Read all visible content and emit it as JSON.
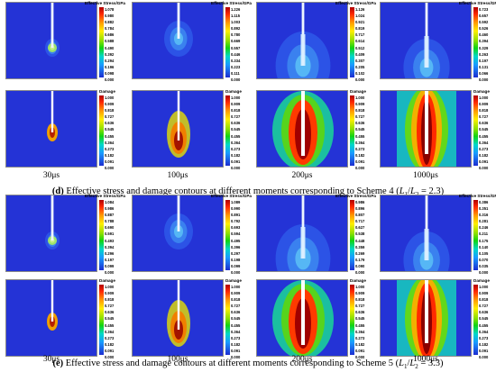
{
  "section_d": {
    "caption_letter": "(d)",
    "caption_text": " Effective stress and damage contours at different moments corresponding to Scheme 4 (",
    "caption_ratio_l1": "L",
    "caption_sub1": "1",
    "caption_slash": "/",
    "caption_ratio_l2": "L",
    "caption_sub2": "2",
    "caption_value": " = 2.3)",
    "times": [
      "30μs",
      "100μs",
      "200μs",
      "1000μs"
    ],
    "stress_panels": [
      {
        "title": "Effective Stress/GPa",
        "ticks": [
          "1.078",
          "0.980",
          "0.882",
          "0.784",
          "0.686",
          "0.588",
          "0.490",
          "0.392",
          "0.294",
          "0.196",
          "0.098",
          "0.000"
        ]
      },
      {
        "title": "Effective Stress/GPa",
        "ticks": [
          "1.226",
          "1.115",
          "1.003",
          "0.892",
          "0.780",
          "0.669",
          "0.557",
          "0.446",
          "0.334",
          "0.223",
          "0.111",
          "0.000"
        ]
      },
      {
        "title": "Effective Stress/GPa",
        "ticks": [
          "1.126",
          "1.024",
          "0.921",
          "0.819",
          "0.717",
          "0.614",
          "0.512",
          "0.409",
          "0.307",
          "0.205",
          "0.102",
          "0.000"
        ]
      },
      {
        "title": "Effective Stress/GPa",
        "ticks": [
          "0.723",
          "0.657",
          "0.592",
          "0.526",
          "0.460",
          "0.394",
          "0.329",
          "0.263",
          "0.197",
          "0.131",
          "0.066",
          "0.000"
        ]
      }
    ],
    "damage_panels": [
      {
        "title": "Damage",
        "ticks": [
          "1.000",
          "0.909",
          "0.818",
          "0.727",
          "0.636",
          "0.545",
          "0.455",
          "0.364",
          "0.273",
          "0.182",
          "0.091",
          "0.000"
        ]
      },
      {
        "title": "Damage",
        "ticks": [
          "1.000",
          "0.909",
          "0.818",
          "0.727",
          "0.636",
          "0.545",
          "0.455",
          "0.364",
          "0.273",
          "0.182",
          "0.091",
          "0.000"
        ]
      },
      {
        "title": "Damage",
        "ticks": [
          "1.000",
          "0.909",
          "0.818",
          "0.727",
          "0.636",
          "0.545",
          "0.455",
          "0.364",
          "0.273",
          "0.182",
          "0.091",
          "0.000"
        ]
      },
      {
        "title": "Damage",
        "ticks": [
          "1.000",
          "0.909",
          "0.818",
          "0.727",
          "0.636",
          "0.545",
          "0.455",
          "0.364",
          "0.273",
          "0.182",
          "0.091",
          "0.000"
        ]
      }
    ]
  },
  "section_e": {
    "caption_letter": "(e)",
    "caption_text": " Effective stress and damage contours at different moments corresponding to Scheme 5 (",
    "caption_ratio_l1": "L",
    "caption_sub1": "1",
    "caption_slash": "/",
    "caption_ratio_l2": "L",
    "caption_sub2": "2",
    "caption_value": " = 3.3)",
    "times": [
      "30μs",
      "100μs",
      "200μs",
      "1000μs"
    ],
    "stress_panels": [
      {
        "title": "Effective Stress/GPa",
        "ticks": [
          "1.084",
          "0.986",
          "0.887",
          "0.788",
          "0.690",
          "0.591",
          "0.493",
          "0.394",
          "0.296",
          "0.197",
          "0.099",
          "0.000"
        ]
      },
      {
        "title": "Effective Stress/GPa",
        "ticks": [
          "1.089",
          "0.990",
          "0.891",
          "0.792",
          "0.693",
          "0.594",
          "0.495",
          "0.396",
          "0.297",
          "0.198",
          "0.099",
          "0.000"
        ]
      },
      {
        "title": "Effective Stress/GPa",
        "ticks": [
          "0.986",
          "0.896",
          "0.807",
          "0.717",
          "0.627",
          "0.538",
          "0.448",
          "0.359",
          "0.269",
          "0.179",
          "0.090",
          "0.000"
        ]
      },
      {
        "title": "Effective Stress/GPa",
        "ticks": [
          "0.386",
          "0.351",
          "0.316",
          "0.281",
          "0.246",
          "0.211",
          "0.175",
          "0.140",
          "0.105",
          "0.070",
          "0.035",
          "0.000"
        ]
      }
    ],
    "damage_panels": [
      {
        "title": "Damage",
        "ticks": [
          "1.000",
          "0.909",
          "0.818",
          "0.727",
          "0.636",
          "0.545",
          "0.455",
          "0.364",
          "0.273",
          "0.182",
          "0.091",
          "0.000"
        ]
      },
      {
        "title": "Damage",
        "ticks": [
          "1.000",
          "0.909",
          "0.818",
          "0.727",
          "0.636",
          "0.545",
          "0.455",
          "0.364",
          "0.273",
          "0.182",
          "0.091",
          "0.000"
        ]
      },
      {
        "title": "Damage",
        "ticks": [
          "1.000",
          "0.909",
          "0.818",
          "0.727",
          "0.636",
          "0.545",
          "0.455",
          "0.364",
          "0.273",
          "0.182",
          "0.091",
          "0.000"
        ]
      },
      {
        "title": "Damage",
        "ticks": [
          "1.000",
          "0.909",
          "0.818",
          "0.727",
          "0.636",
          "0.545",
          "0.455",
          "0.364",
          "0.273",
          "0.182",
          "0.091",
          "0.000"
        ]
      }
    ]
  }
}
